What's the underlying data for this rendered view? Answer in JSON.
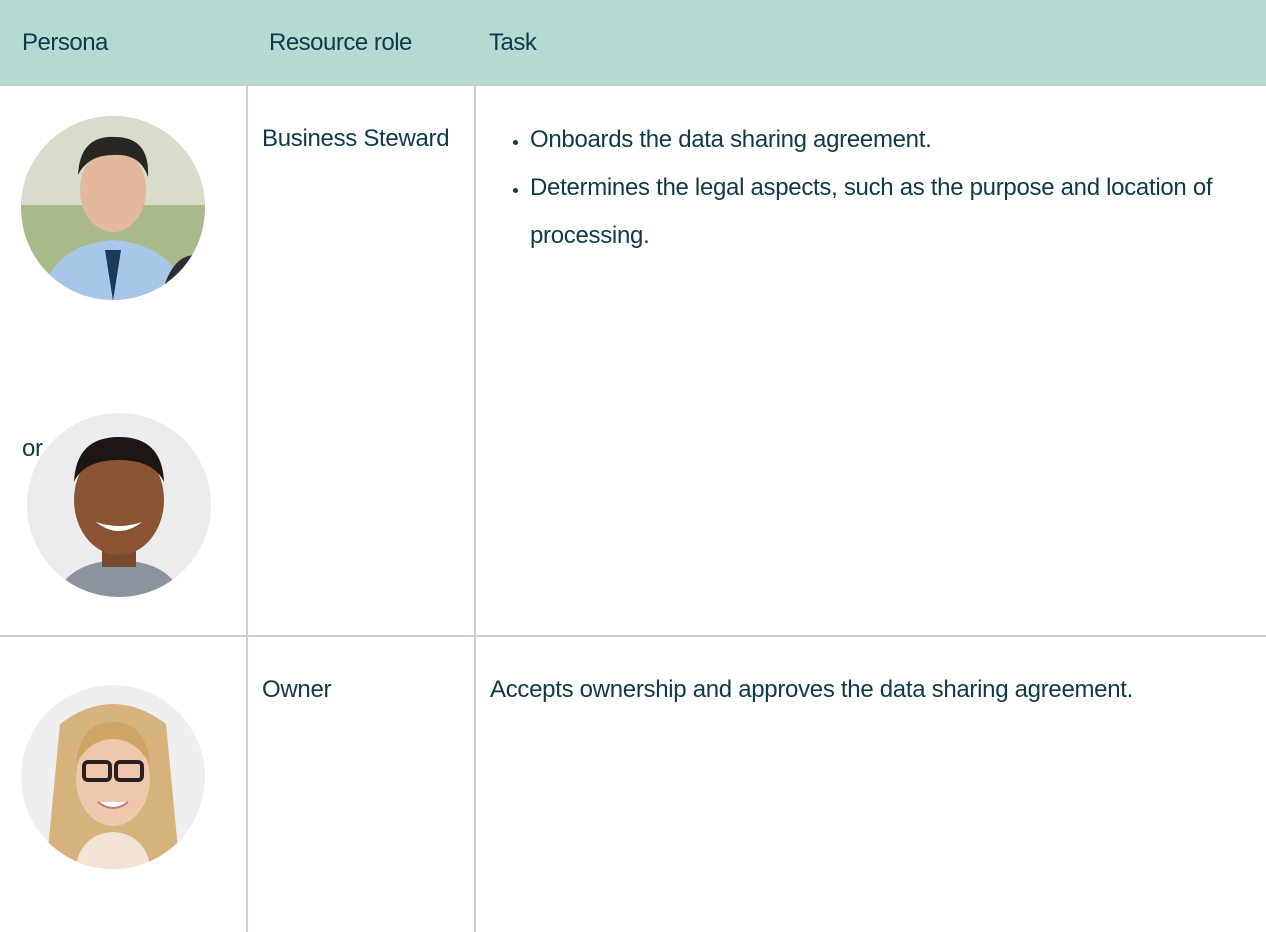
{
  "table": {
    "headers": [
      "Persona",
      "Resource role",
      "Task"
    ],
    "rows": [
      {
        "persona_separator": "or",
        "role": "Business Steward",
        "tasks": [
          "Onboards the data sharing agreement.",
          "Determines the legal aspects, such as the purpose and location of processing."
        ]
      },
      {
        "role": "Owner",
        "task": "Accepts ownership and approves the data sharing agreement."
      }
    ]
  }
}
